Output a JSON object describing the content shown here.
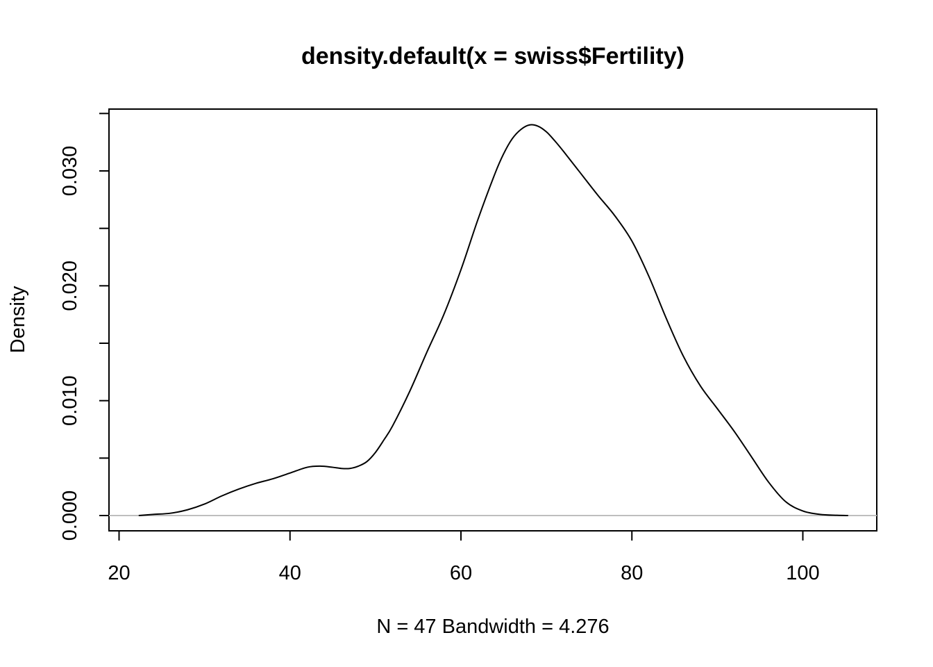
{
  "chart_data": {
    "type": "line",
    "title": "density.default(x = swiss$Fertility)",
    "xlabel": "N = 47   Bandwidth = 4.276",
    "ylabel": "Density",
    "xlim": [
      20,
      108
    ],
    "ylim": [
      -0.0013,
      0.0356
    ],
    "x_ticks": [
      20,
      40,
      60,
      80,
      100
    ],
    "x_tick_labels": [
      "20",
      "40",
      "60",
      "80",
      "100"
    ],
    "y_ticks": [
      0.0,
      0.005,
      0.01,
      0.015,
      0.02,
      0.025,
      0.03,
      0.035
    ],
    "y_tick_labels": [
      "0.000",
      "",
      "0.010",
      "",
      "0.020",
      "",
      "0.030",
      ""
    ],
    "grid": false,
    "baseline_color": "#bebebe",
    "line_color": "#000000",
    "series": [
      {
        "x": [
          22.3,
          24,
          26,
          28,
          30,
          32,
          34,
          36,
          38,
          40,
          42,
          43.5,
          45,
          46,
          47,
          48,
          49,
          50,
          51,
          52,
          54,
          56,
          58,
          60,
          62,
          64,
          65,
          66,
          67,
          68,
          69,
          70,
          71,
          72,
          74,
          76,
          78,
          80,
          82,
          84,
          86,
          88,
          90,
          92,
          94,
          96,
          98,
          100,
          102,
          104,
          105.3
        ],
        "y": [
          0.0,
          0.0001,
          0.0002,
          0.0005,
          0.001,
          0.0017,
          0.0023,
          0.0028,
          0.0032,
          0.0037,
          0.0042,
          0.0043,
          0.0042,
          0.0041,
          0.0041,
          0.0043,
          0.0047,
          0.0055,
          0.0066,
          0.0078,
          0.0108,
          0.0142,
          0.0175,
          0.0214,
          0.0258,
          0.0298,
          0.0315,
          0.0328,
          0.0336,
          0.034,
          0.0339,
          0.0334,
          0.0326,
          0.0317,
          0.0298,
          0.0279,
          0.0261,
          0.0239,
          0.0208,
          0.0172,
          0.0139,
          0.0113,
          0.0093,
          0.0073,
          0.0051,
          0.0029,
          0.0012,
          0.0004,
          0.0001,
          2e-05,
          0.0
        ]
      }
    ]
  }
}
